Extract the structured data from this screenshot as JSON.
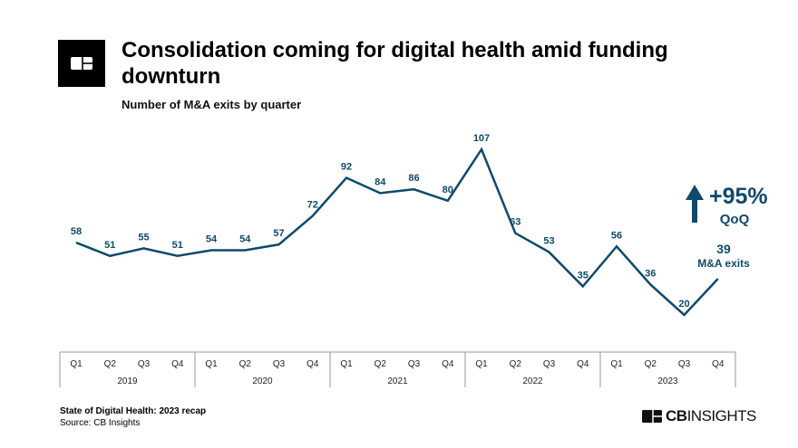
{
  "header": {
    "title": "Consolidation coming for digital health amid funding downturn",
    "subtitle": "Number of M&A exits by quarter",
    "logo_icon": "cb-insights-icon"
  },
  "callout": {
    "change": "+95%",
    "change_label": "QoQ",
    "latest_value": "39",
    "latest_label": "M&A exits",
    "arrow_icon": "arrow-up-icon"
  },
  "chart_data": {
    "type": "line",
    "title": "Consolidation coming for digital health amid funding downturn",
    "subtitle": "Number of M&A exits by quarter",
    "xlabel": "",
    "ylabel": "",
    "grid": false,
    "color": "#0e4a6a",
    "years": [
      "2019",
      "2020",
      "2021",
      "2022",
      "2023"
    ],
    "quarters": [
      "Q1",
      "Q2",
      "Q3",
      "Q4"
    ],
    "categories": [
      "Q1 2019",
      "Q2 2019",
      "Q3 2019",
      "Q4 2019",
      "Q1 2020",
      "Q2 2020",
      "Q3 2020",
      "Q4 2020",
      "Q1 2021",
      "Q2 2021",
      "Q3 2021",
      "Q4 2021",
      "Q1 2022",
      "Q2 2022",
      "Q3 2022",
      "Q4 2022",
      "Q1 2023",
      "Q2 2023",
      "Q3 2023",
      "Q4 2023"
    ],
    "values": [
      58,
      51,
      55,
      51,
      54,
      54,
      57,
      72,
      92,
      84,
      86,
      80,
      107,
      63,
      53,
      35,
      56,
      36,
      20,
      39
    ]
  },
  "footer": {
    "report": "State of Digital Health: 2023 recap",
    "source": "Source: CB Insights",
    "brand_bold": "CB",
    "brand_rest": "INSIGHTS"
  }
}
